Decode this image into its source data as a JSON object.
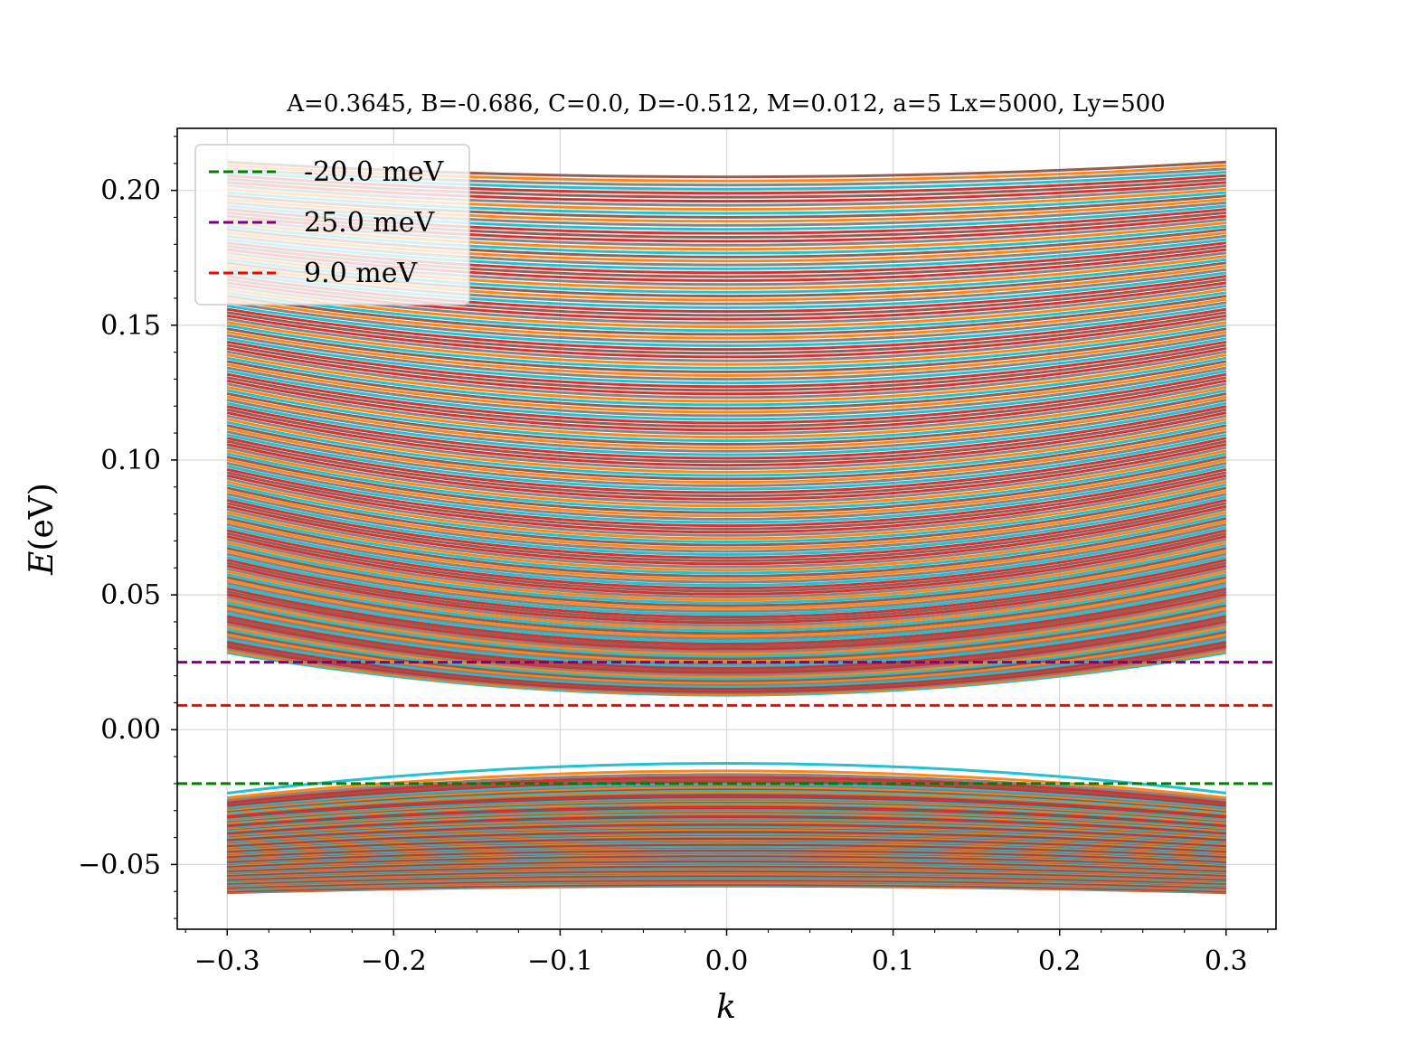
{
  "chart_data": {
    "type": "line",
    "title": "A=0.3645, B=-0.686, C=0.0, D=-0.512, M=0.012, a=5 Lx=5000, Ly=500",
    "xlabel": "k",
    "ylabel": "E(eV)",
    "ylabel_parts": {
      "symbol": "E",
      "unit": "(eV)"
    },
    "xlim": [
      -0.33,
      0.33
    ],
    "ylim": [
      -0.074,
      0.223
    ],
    "x_range": [
      -0.3,
      0.3
    ],
    "x_ticks": [
      -0.3,
      -0.2,
      -0.1,
      0.0,
      0.1,
      0.2,
      0.3
    ],
    "x_tick_labels": [
      "−0.3",
      "−0.2",
      "−0.1",
      "0.0",
      "0.1",
      "0.2",
      "0.3"
    ],
    "y_ticks": [
      -0.05,
      0.0,
      0.05,
      0.1,
      0.15,
      0.2
    ],
    "y_tick_labels": [
      "−0.05",
      "0.00",
      "0.05",
      "0.10",
      "0.15",
      "0.20"
    ],
    "grid": true,
    "legend_position": "upper-left",
    "series_palette": [
      "#1f77b4",
      "#ff7f0e",
      "#2ca02c",
      "#d62728",
      "#9467bd",
      "#8c564b",
      "#e377c2",
      "#7f7f7f",
      "#bcbd22",
      "#17becf"
    ],
    "bands": {
      "conduction": {
        "count": 160,
        "min_at_k0": 0.0128,
        "max_at_k0": 0.205,
        "min_at_edge": 0.0285,
        "max_at_edge": 0.2105
      },
      "valence": {
        "count": 160,
        "max_at_k0": -0.0125,
        "min_at_k0": -0.058,
        "max_at_edge": -0.0235,
        "min_at_edge": -0.0605
      }
    },
    "hlines": [
      {
        "label": "-20.0 meV",
        "value_eV": -0.02,
        "color": "#008000"
      },
      {
        "label": "25.0 meV",
        "value_eV": 0.025,
        "color": "#800080"
      },
      {
        "label": "9.0 meV",
        "value_eV": 0.009,
        "color": "#ff0000"
      }
    ]
  }
}
